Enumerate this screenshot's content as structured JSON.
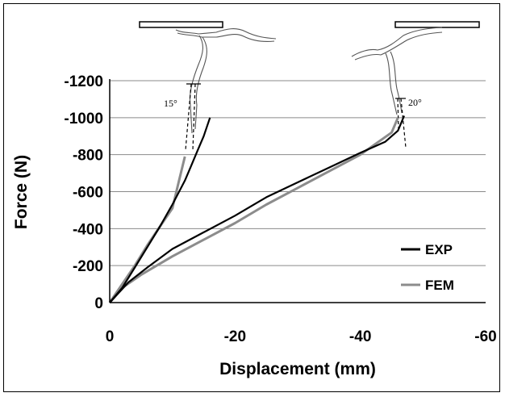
{
  "chart_data": {
    "type": "line",
    "xlabel": "Displacement (mm)",
    "ylabel": "Force (N)",
    "xlim": [
      0,
      -60
    ],
    "ylim": [
      0,
      -1200
    ],
    "x_ticks": [
      "0",
      "-20",
      "-40",
      "-60"
    ],
    "y_ticks": [
      "0",
      "-200",
      "-400",
      "-600",
      "-800",
      "-1000",
      "-1200"
    ],
    "x_tick_values": [
      0,
      -20,
      -40,
      -60
    ],
    "y_tick_values": [
      0,
      -200,
      -400,
      -600,
      -800,
      -1000,
      -1200
    ],
    "grid": "horizontal",
    "legend_position": "bottom-right",
    "series": [
      {
        "name": "EXP",
        "color": "#000000",
        "curves": [
          {
            "x": [
              0,
              -2,
              -4,
              -6,
              -8,
              -10,
              -12,
              -13,
              -14,
              -15,
              -16
            ],
            "y": [
              0,
              -80,
              -190,
              -300,
              -410,
              -530,
              -660,
              -740,
              -820,
              -900,
              -1000
            ]
          },
          {
            "x": [
              0,
              -3,
              -6,
              -10,
              -15,
              -20,
              -25,
              -30,
              -35,
              -40,
              -44,
              -46,
              -47
            ],
            "y": [
              0,
              -110,
              -190,
              -290,
              -380,
              -470,
              -570,
              -650,
              -730,
              -810,
              -870,
              -930,
              -1010
            ]
          }
        ]
      },
      {
        "name": "FEM",
        "color": "#8c8c8c",
        "curves": [
          {
            "x": [
              0,
              -2,
              -4,
              -6,
              -8,
              -10,
              -11,
              -12
            ],
            "y": [
              0,
              -100,
              -200,
              -310,
              -410,
              -510,
              -650,
              -790
            ]
          },
          {
            "x": [
              0,
              -2,
              -5,
              -10,
              -15,
              -20,
              -25,
              -30,
              -35,
              -40,
              -45,
              -46
            ],
            "y": [
              0,
              -80,
              -150,
              -250,
              -340,
              -430,
              -530,
              -620,
              -710,
              -800,
              -920,
              -1000
            ]
          }
        ]
      }
    ],
    "annotations": [
      "15°",
      "20°"
    ]
  }
}
